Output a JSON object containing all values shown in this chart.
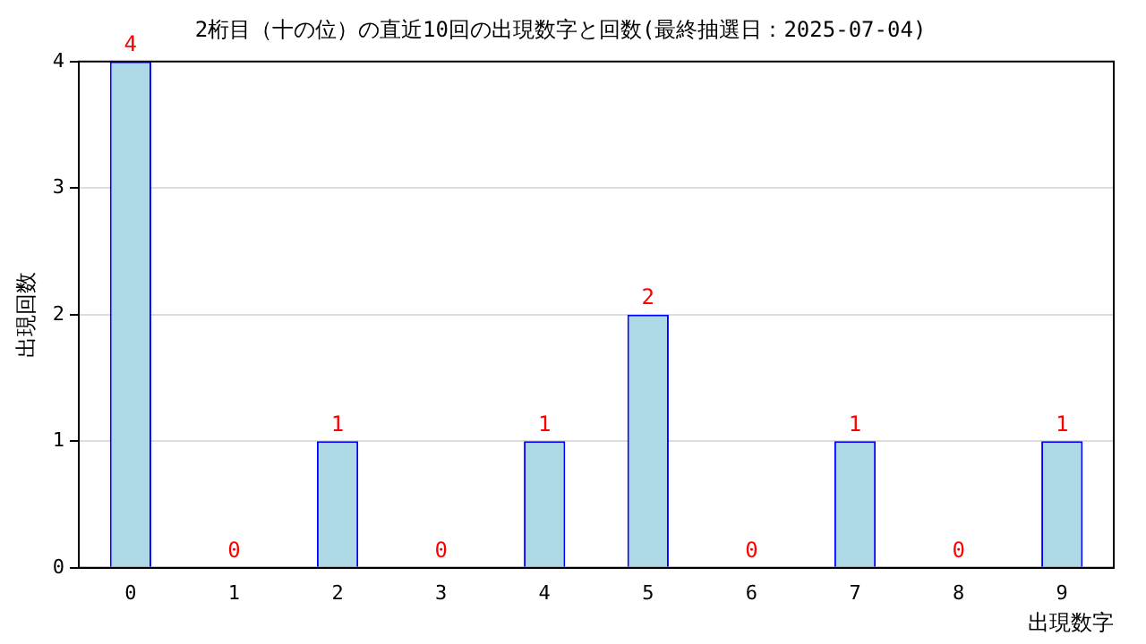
{
  "chart_data": {
    "type": "bar",
    "title": "2桁目（十の位）の直近10回の出現数字と回数(最終抽選日：2025-07-04)",
    "xlabel": "出現数字",
    "ylabel": "出現回数",
    "categories": [
      "0",
      "1",
      "2",
      "3",
      "4",
      "5",
      "6",
      "7",
      "8",
      "9"
    ],
    "values": [
      4,
      0,
      1,
      0,
      1,
      2,
      0,
      1,
      0,
      1
    ],
    "color": "#add8e6",
    "ylim": [
      0,
      4
    ],
    "yticks": [
      0,
      1,
      2,
      3,
      4
    ],
    "grid": "y",
    "data_labels": true,
    "legend": false
  }
}
